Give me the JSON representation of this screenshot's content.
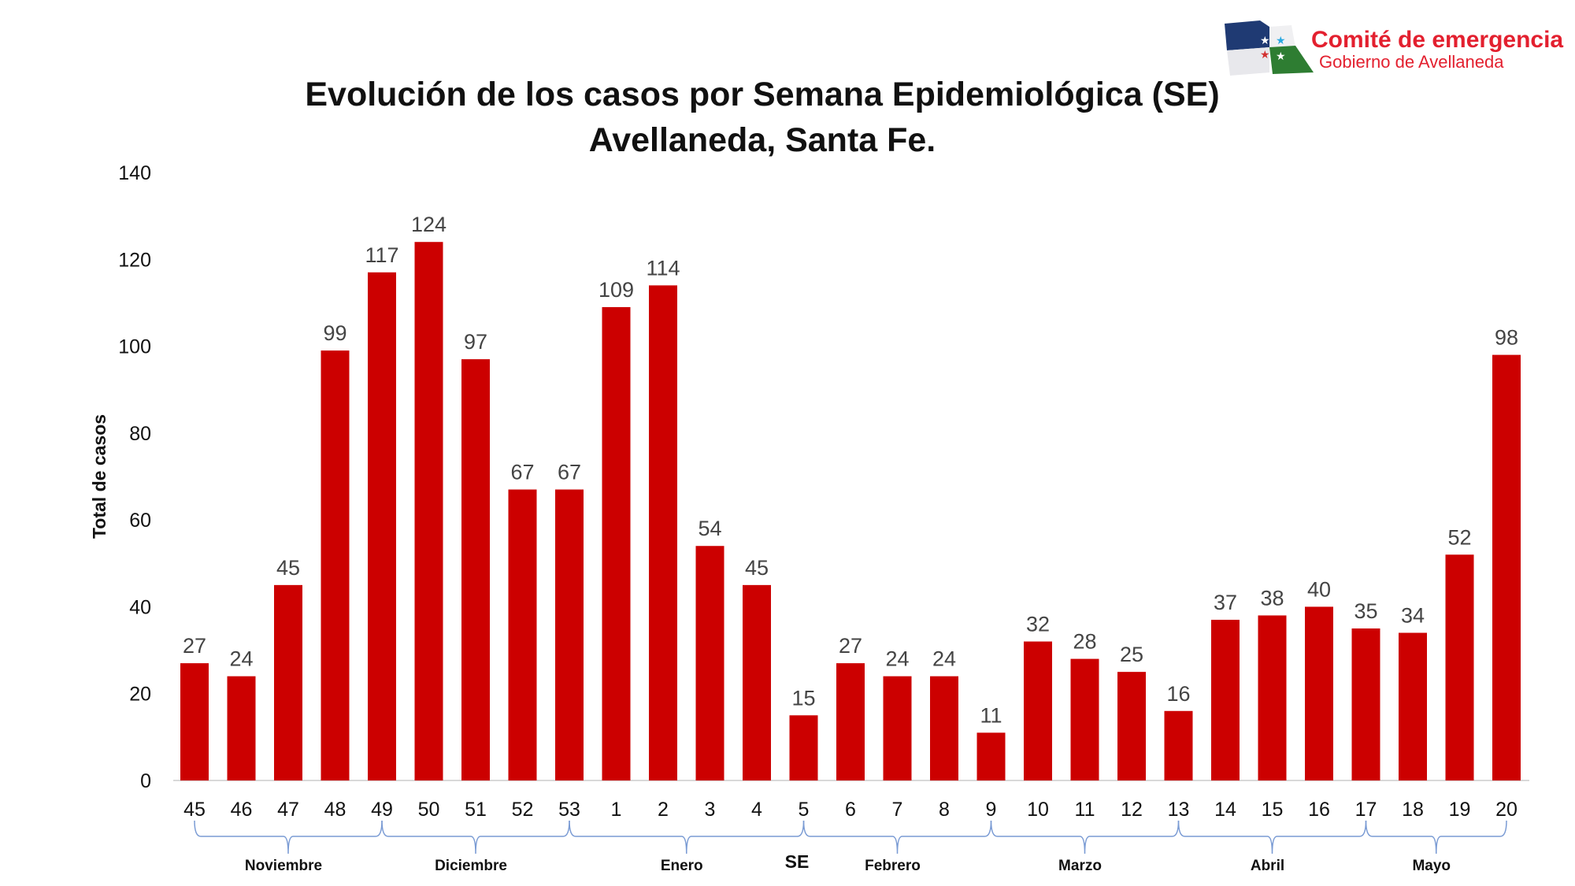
{
  "logo": {
    "line1": "Comité de emergencia",
    "line2": "Gobierno de Avellaneda",
    "color": "#e3202f"
  },
  "chart_data": {
    "type": "bar",
    "title": "Evolución de los casos por Semana Epidemiológica (SE)",
    "subtitle": "Avellaneda, Santa Fe.",
    "xlabel": "SE",
    "ylabel": "Total de casos",
    "ylim": [
      0,
      140
    ],
    "yticks": [
      0,
      20,
      40,
      60,
      80,
      100,
      120,
      140
    ],
    "grid": false,
    "bar_color": "#cc0000",
    "categories": [
      "45",
      "46",
      "47",
      "48",
      "49",
      "50",
      "51",
      "52",
      "53",
      "1",
      "2",
      "3",
      "4",
      "5",
      "6",
      "7",
      "8",
      "9",
      "10",
      "11",
      "12",
      "13",
      "14",
      "15",
      "16",
      "17",
      "18",
      "19",
      "20"
    ],
    "values": [
      27,
      24,
      45,
      99,
      117,
      124,
      97,
      67,
      67,
      109,
      114,
      54,
      45,
      15,
      27,
      24,
      24,
      11,
      32,
      28,
      25,
      16,
      37,
      38,
      40,
      35,
      34,
      52,
      98
    ],
    "months": [
      {
        "label": "Noviembre",
        "from": "45",
        "to": "49"
      },
      {
        "label": "Diciembre",
        "from": "49",
        "to": "53"
      },
      {
        "label": "Enero",
        "from": "53",
        "to": "5"
      },
      {
        "label": "Febrero",
        "from": "5",
        "to": "9"
      },
      {
        "label": "Marzo",
        "from": "9",
        "to": "13"
      },
      {
        "label": "Abril",
        "from": "13",
        "to": "17"
      },
      {
        "label": "Mayo",
        "from": "17",
        "to": "20"
      }
    ]
  }
}
